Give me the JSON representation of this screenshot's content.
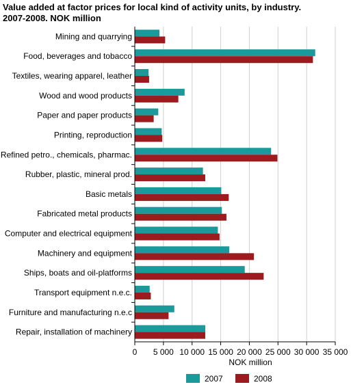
{
  "title_line1": "Value added at factor prices for local kind of activity units, by industry.",
  "title_line2": "2007-2008. NOK million",
  "chart_data": {
    "type": "bar",
    "orientation": "horizontal",
    "categories": [
      "Mining and quarrying",
      "Food, beverages and tobacco",
      "Textiles, wearing apparel, leather",
      "Wood and wood products",
      "Paper and paper products",
      "Printing, reproduction",
      "Refined petro., chemicals, pharmac.",
      "Rubber, plastic, mineral prod.",
      "Basic metals",
      "Fabricated metal products",
      "Computer and electrical equipment",
      "Machinery and equipment",
      "Ships, boats and oil-platforms",
      "Transport equipment n.e.c.",
      "Furniture and manufacturing n.e.c",
      "Repair, installation of machinery"
    ],
    "series": [
      {
        "name": "2007",
        "color": "#1a9a9a",
        "values": [
          4300,
          31500,
          2400,
          8700,
          4100,
          4700,
          23800,
          11900,
          15100,
          15200,
          14500,
          16500,
          19200,
          2600,
          6900,
          12300
        ]
      },
      {
        "name": "2008",
        "color": "#9b1b1f",
        "values": [
          5300,
          31100,
          2500,
          7600,
          3300,
          4800,
          24900,
          12300,
          16400,
          16000,
          14800,
          20800,
          22500,
          2800,
          5900,
          12300
        ]
      }
    ],
    "xlabel": "NOK million",
    "xlim": [
      0,
      35000
    ],
    "xticks": [
      0,
      5000,
      10000,
      15000,
      20000,
      25000,
      30000,
      35000
    ],
    "xtick_labels": [
      "0",
      "5 000",
      "10 000",
      "15 000",
      "20 000",
      "25 000",
      "30 000",
      "35 000"
    ],
    "grid": "vertical",
    "legend_position": "bottom"
  }
}
